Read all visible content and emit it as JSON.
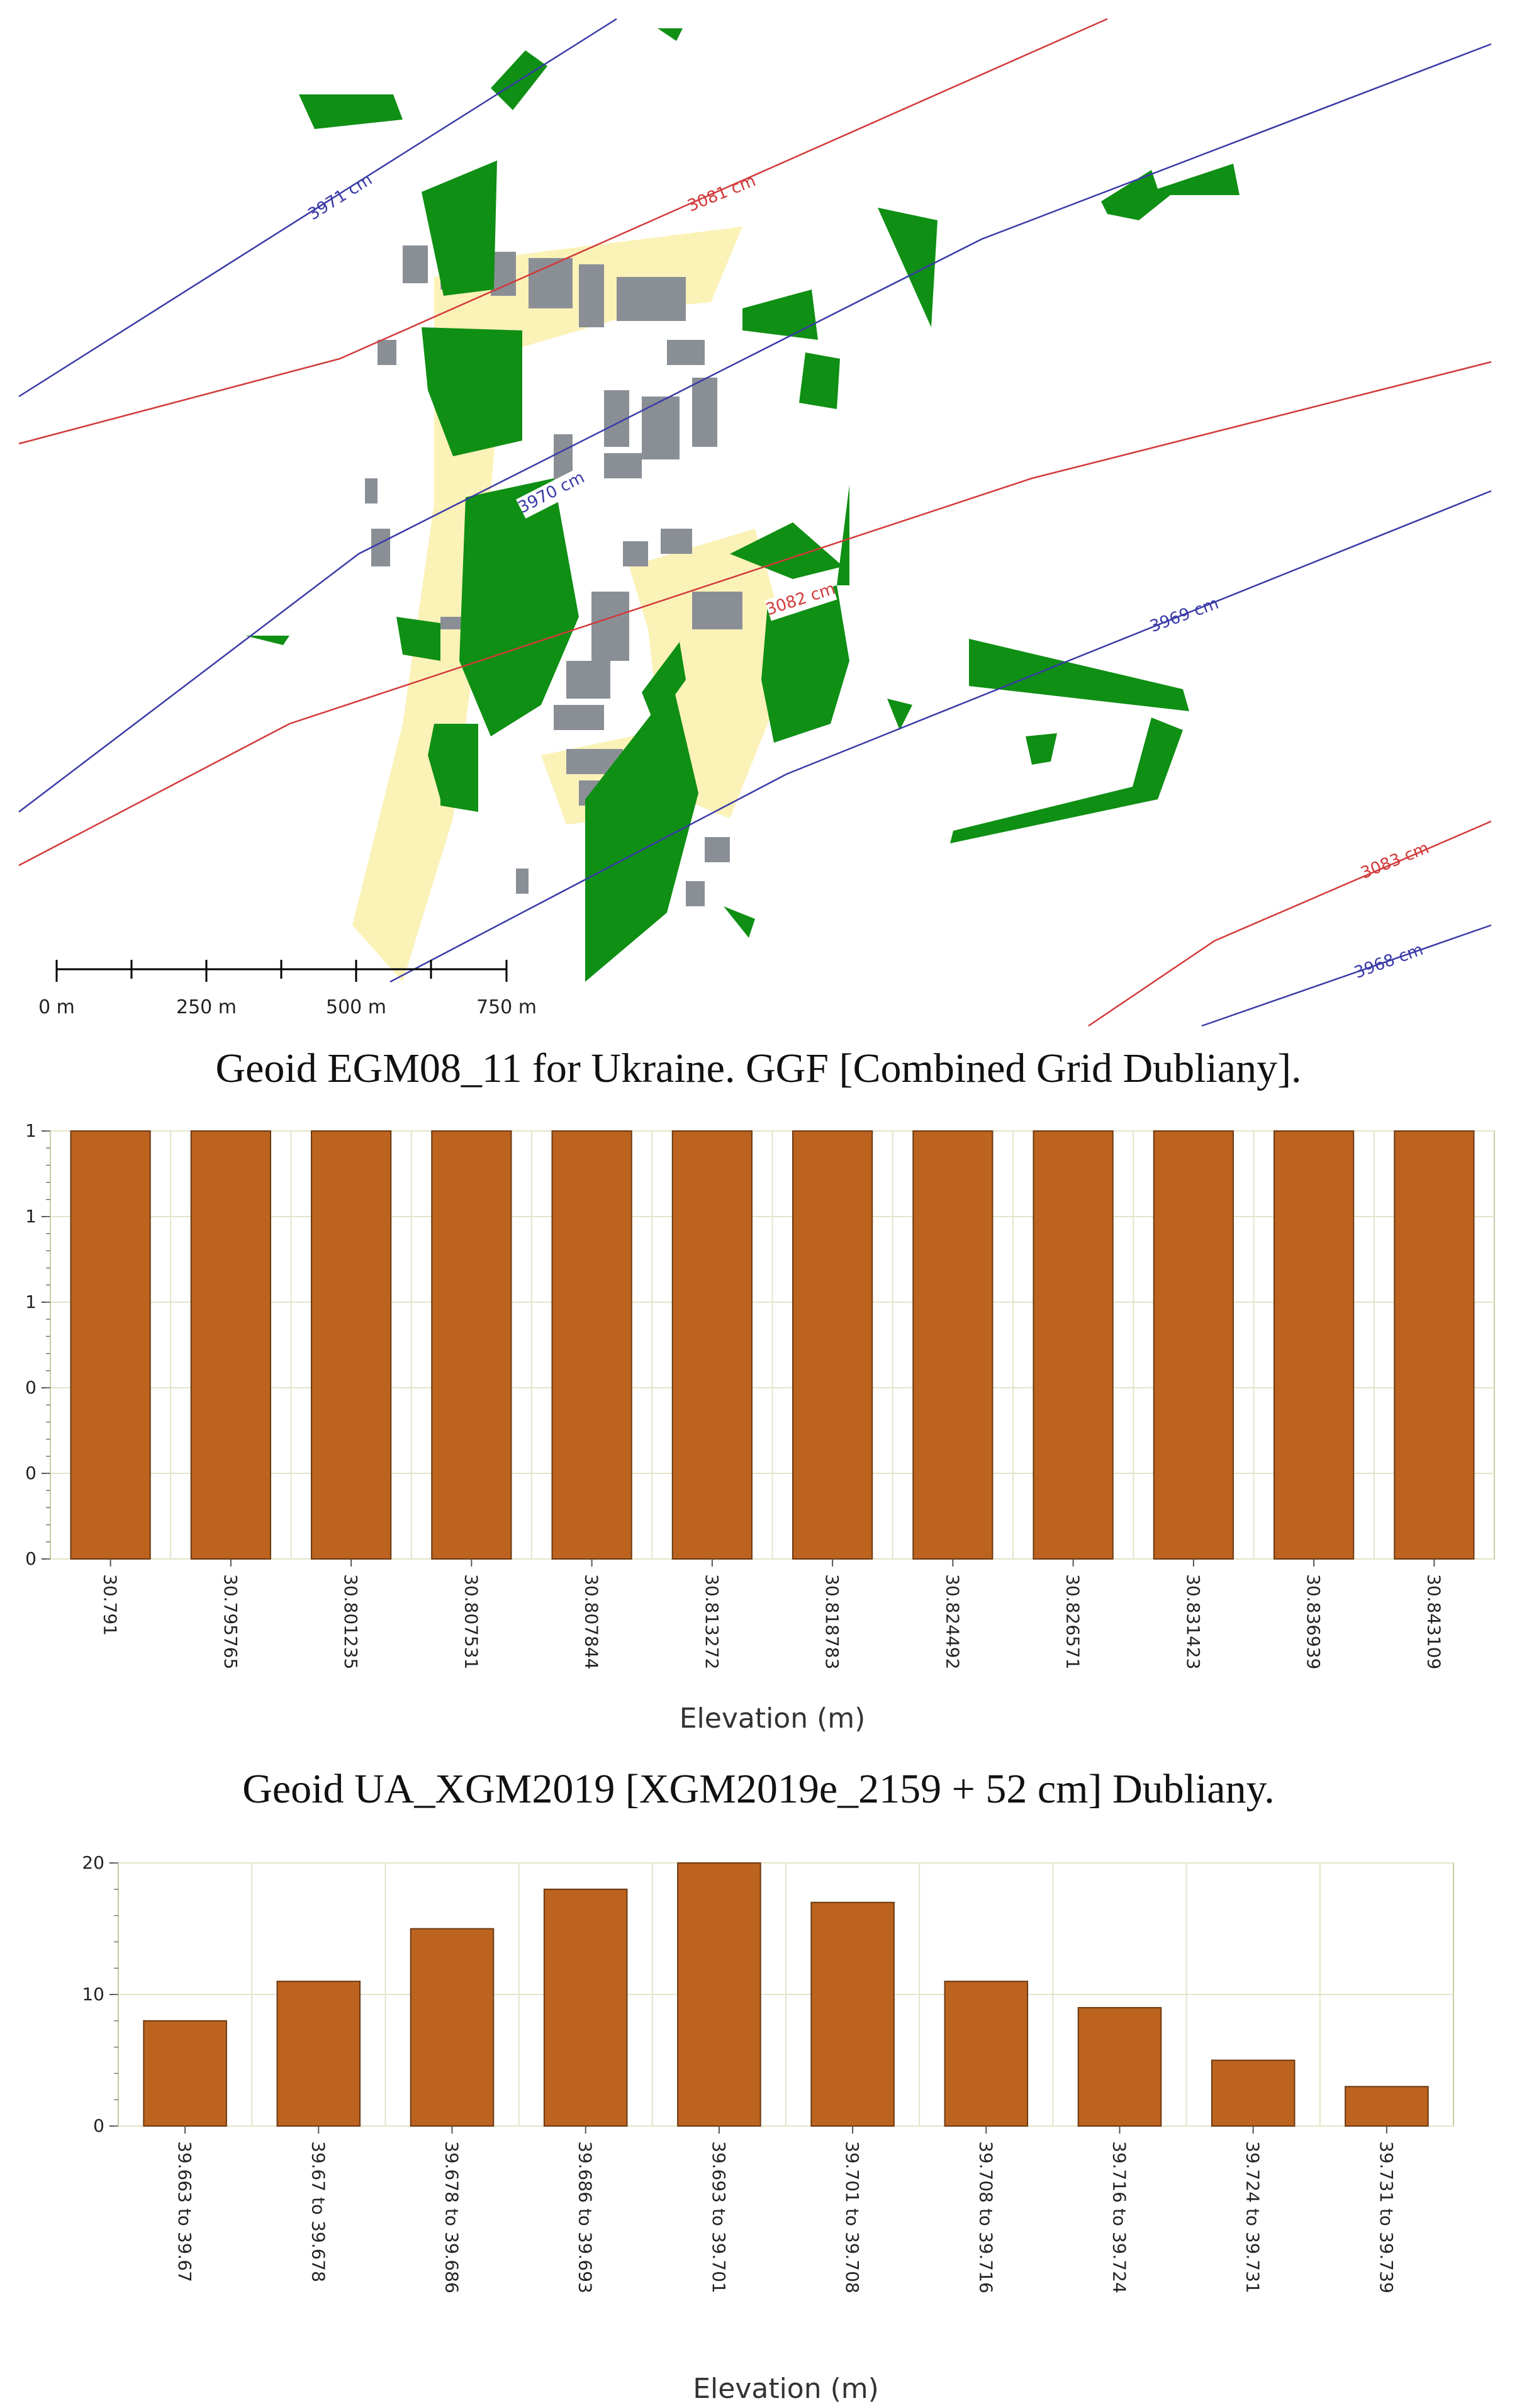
{
  "map": {
    "contours": [
      {
        "label": "3971 cm",
        "color": "#3a3aa8"
      },
      {
        "label": "3081 cm",
        "color": "#d23a3a"
      },
      {
        "label": "3970 cm",
        "color": "#3a3aa8"
      },
      {
        "label": "3082 cm",
        "color": "#d23a3a"
      },
      {
        "label": "3969 cm",
        "color": "#3a3aa8"
      },
      {
        "label": "3083 cm",
        "color": "#d23a3a"
      },
      {
        "label": "3968 cm",
        "color": "#3a3aa8"
      }
    ],
    "scale_labels": [
      "0 m",
      "250 m",
      "500 m",
      "750 m"
    ],
    "colors": {
      "vegetation": "#0f8f14",
      "roads": "#fbf2b8",
      "buildings": "#8a8f96"
    }
  },
  "captions": {
    "first": "Geoid EGM08_11 for Ukraine. GGF [Combined Grid Dubliany].",
    "second": "Geoid UA_XGM2019 [XGM2019e_2159 + 52 cm] Dubliany."
  },
  "chart_data": [
    {
      "type": "bar",
      "categories": [
        "30.791",
        "30.795765",
        "30.801235",
        "30.807531",
        "30.807844",
        "30.813272",
        "30.818783",
        "30.824492",
        "30.826571",
        "30.831423",
        "30.836939",
        "30.843109"
      ],
      "values": [
        1,
        1,
        1,
        1,
        1,
        1,
        1,
        1,
        1,
        1,
        1,
        1
      ],
      "ytick_labels": [
        "0",
        "0",
        "0",
        "1",
        "1",
        "1"
      ],
      "ylim": [
        0,
        1
      ],
      "xlabel": "Elevation (m)",
      "ylabel": "",
      "bar_color": "#bc6320",
      "grid": true
    },
    {
      "type": "bar",
      "categories": [
        "39.663 to 39.67",
        "39.67 to 39.678",
        "39.678 to 39.686",
        "39.686 to 39.693",
        "39.693 to 39.701",
        "39.701 to 39.708",
        "39.708 to 39.716",
        "39.716 to 39.724",
        "39.724 to 39.731",
        "39.731 to 39.739"
      ],
      "values": [
        8,
        11,
        15,
        18,
        20,
        17,
        11,
        9,
        5,
        3
      ],
      "ytick_labels": [
        "0",
        "10",
        "20"
      ],
      "ylim": [
        0,
        20
      ],
      "xlabel": "Elevation (m)",
      "ylabel": "",
      "bar_color": "#bc6320",
      "grid": true
    }
  ]
}
